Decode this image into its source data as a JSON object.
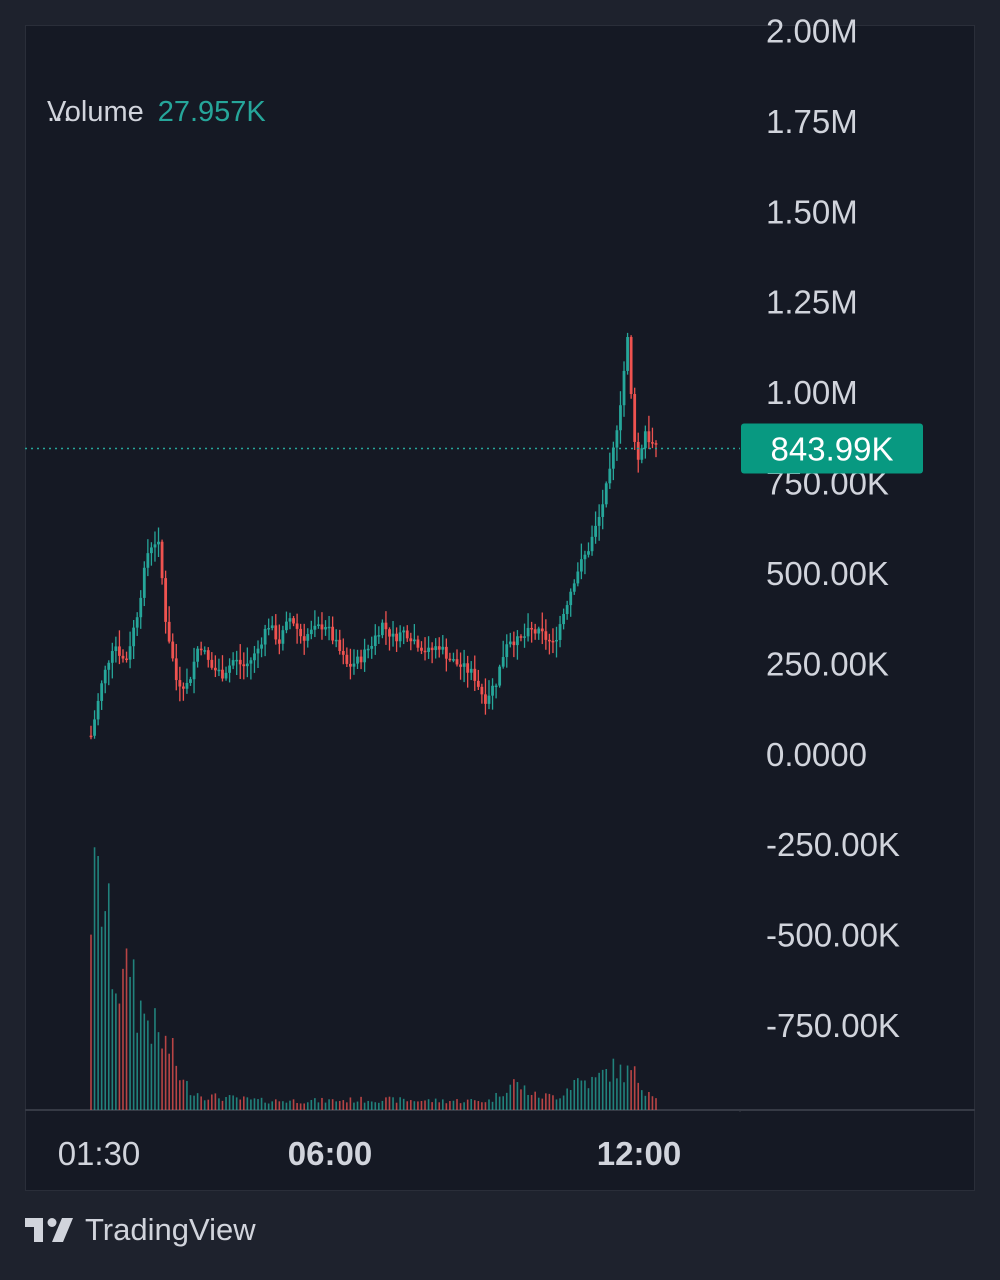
{
  "legend": {
    "menu": "...",
    "volume_label": "Volume",
    "volume_value": "27.957K"
  },
  "price_badge": "843.99K",
  "brand": {
    "name": "TradingView",
    "logo_icon": "tradingview-logo-icon"
  },
  "colors": {
    "background": "#151924",
    "outer_background": "#1e222d",
    "up": "#26a69a",
    "down": "#ef5350",
    "text": "#d1d4dc"
  },
  "chart_data": {
    "type": "candlestick",
    "y_axis_labels": [
      "2.00M",
      "1.75M",
      "1.50M",
      "1.25M",
      "1.00M",
      "750.00K",
      "500.00K",
      "250.00K",
      "0.0000",
      "-250.00K",
      "-500.00K",
      "-750.00K"
    ],
    "y_ticks": [
      2000000,
      1750000,
      1500000,
      1250000,
      1000000,
      750000,
      500000,
      250000,
      0,
      -250000,
      -500000,
      -750000
    ],
    "ylim": [
      -985000,
      2015000
    ],
    "x_tick_labels": [
      "01:30",
      "06:00",
      "12:00"
    ],
    "last_price": 843990,
    "price_path": [
      [
        0,
        50000
      ],
      [
        2,
        200000
      ],
      [
        4,
        310000
      ],
      [
        6,
        250000
      ],
      [
        8,
        380000
      ],
      [
        10,
        560000
      ],
      [
        11,
        590000
      ],
      [
        12,
        570000
      ],
      [
        13,
        380000
      ],
      [
        15,
        200000
      ],
      [
        17,
        190000
      ],
      [
        19,
        310000
      ],
      [
        21,
        240000
      ],
      [
        23,
        220000
      ],
      [
        25,
        260000
      ],
      [
        27,
        240000
      ],
      [
        29,
        280000
      ],
      [
        31,
        360000
      ],
      [
        33,
        310000
      ],
      [
        35,
        380000
      ],
      [
        37,
        320000
      ],
      [
        39,
        340000
      ],
      [
        41,
        360000
      ],
      [
        43,
        300000
      ],
      [
        45,
        240000
      ],
      [
        47,
        260000
      ],
      [
        49,
        300000
      ],
      [
        51,
        360000
      ],
      [
        53,
        320000
      ],
      [
        55,
        340000
      ],
      [
        57,
        310000
      ],
      [
        59,
        280000
      ],
      [
        61,
        300000
      ],
      [
        63,
        260000
      ],
      [
        65,
        240000
      ],
      [
        67,
        220000
      ],
      [
        69,
        150000
      ],
      [
        71,
        200000
      ],
      [
        73,
        320000
      ],
      [
        75,
        310000
      ],
      [
        77,
        340000
      ],
      [
        79,
        330000
      ],
      [
        81,
        300000
      ],
      [
        83,
        400000
      ],
      [
        85,
        500000
      ],
      [
        87,
        560000
      ],
      [
        89,
        650000
      ],
      [
        91,
        780000
      ],
      [
        93,
        1000000
      ],
      [
        94,
        1150000
      ],
      [
        95,
        900000
      ],
      [
        96,
        800000
      ],
      [
        97,
        900000
      ],
      [
        98,
        860000
      ],
      [
        99,
        843990
      ]
    ],
    "volume_path": [
      [
        0,
        0.9
      ],
      [
        2,
        0.95
      ],
      [
        4,
        0.6
      ],
      [
        6,
        0.5
      ],
      [
        7,
        0.72
      ],
      [
        8,
        0.45
      ],
      [
        10,
        0.4
      ],
      [
        12,
        0.3
      ],
      [
        14,
        0.26
      ],
      [
        16,
        0.12
      ],
      [
        18,
        0.08
      ],
      [
        20,
        0.06
      ],
      [
        25,
        0.05
      ],
      [
        30,
        0.04
      ],
      [
        40,
        0.04
      ],
      [
        50,
        0.045
      ],
      [
        60,
        0.04
      ],
      [
        70,
        0.04
      ],
      [
        74,
        0.12
      ],
      [
        78,
        0.06
      ],
      [
        82,
        0.06
      ],
      [
        85,
        0.13
      ],
      [
        88,
        0.12
      ],
      [
        90,
        0.16
      ],
      [
        92,
        0.18
      ],
      [
        93,
        0.16
      ],
      [
        95,
        0.16
      ],
      [
        97,
        0.09
      ],
      [
        99,
        0.07
      ]
    ]
  }
}
